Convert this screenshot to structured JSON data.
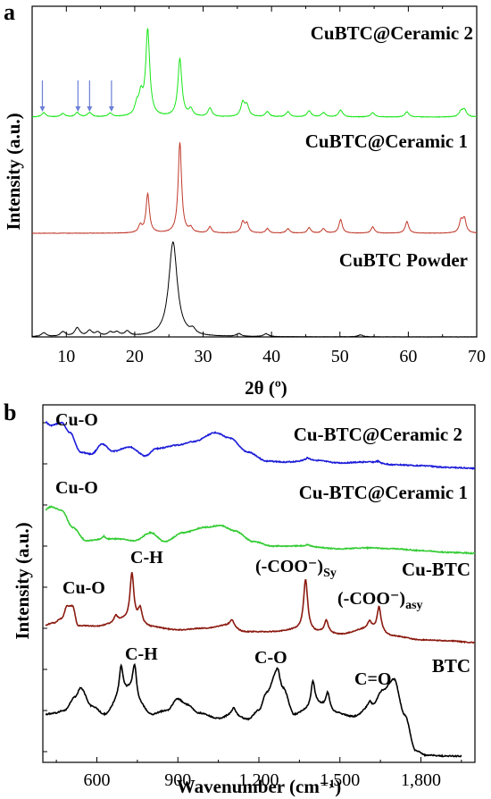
{
  "chart_data": [
    {
      "panel": "a",
      "type": "line",
      "xlabel": "2θ (º)",
      "ylabel": "Intensity (a.u.)",
      "xlim": [
        5,
        70
      ],
      "xticks": [
        10,
        20,
        30,
        40,
        50,
        60,
        70
      ],
      "series": [
        {
          "name": "CuBTC@Ceramic 2",
          "color": "#19e619",
          "peaks": [
            [
              6.7,
              0.05
            ],
            [
              9.5,
              0.04
            ],
            [
              11.6,
              0.05
            ],
            [
              13.4,
              0.05
            ],
            [
              16.4,
              0.04
            ],
            [
              20.3,
              0.12
            ],
            [
              20.9,
              0.22
            ],
            [
              21.9,
              1.0
            ],
            [
              26.6,
              0.67
            ],
            [
              28.2,
              0.08
            ],
            [
              31.0,
              0.1
            ],
            [
              35.8,
              0.16
            ],
            [
              36.4,
              0.12
            ],
            [
              39.4,
              0.06
            ],
            [
              42.4,
              0.06
            ],
            [
              45.5,
              0.07
            ],
            [
              47.6,
              0.05
            ],
            [
              50.1,
              0.08
            ],
            [
              54.8,
              0.05
            ],
            [
              59.8,
              0.06
            ],
            [
              67.7,
              0.06
            ],
            [
              68.2,
              0.08
            ]
          ]
        },
        {
          "name": "CuBTC@Ceramic 1",
          "color": "#c0392b",
          "peaks": [
            [
              20.8,
              0.08
            ],
            [
              21.9,
              0.43
            ],
            [
              26.6,
              1.0
            ],
            [
              28.2,
              0.05
            ],
            [
              31.0,
              0.07
            ],
            [
              35.8,
              0.12
            ],
            [
              36.4,
              0.1
            ],
            [
              39.4,
              0.05
            ],
            [
              42.4,
              0.05
            ],
            [
              45.5,
              0.06
            ],
            [
              47.6,
              0.05
            ],
            [
              50.1,
              0.15
            ],
            [
              54.8,
              0.07
            ],
            [
              59.8,
              0.13
            ],
            [
              67.7,
              0.13
            ],
            [
              68.2,
              0.15
            ]
          ]
        },
        {
          "name": "CuBTC Powder",
          "color": "#000000",
          "peaks": [
            [
              6.7,
              0.04
            ],
            [
              9.5,
              0.05
            ],
            [
              11.6,
              0.09
            ],
            [
              13.4,
              0.06
            ],
            [
              14.6,
              0.04
            ],
            [
              16.4,
              0.04
            ],
            [
              17.4,
              0.04
            ],
            [
              18.9,
              0.05
            ],
            [
              25.6,
              1.0
            ],
            [
              28.5,
              0.05
            ],
            [
              35.2,
              0.03
            ],
            [
              39.2,
              0.03
            ],
            [
              53.0,
              0.02
            ]
          ]
        }
      ],
      "arrows_x": [
        6.5,
        11.7,
        13.4,
        16.6
      ]
    },
    {
      "panel": "b",
      "type": "line",
      "xlabel": "Wavenumber (cm⁻¹)",
      "ylabel": "Intensity (a.u.)",
      "xlim": [
        400,
        2000
      ],
      "xticks": [
        600,
        900,
        1200,
        1500,
        1800
      ],
      "xtick_labels": [
        "600",
        "900",
        "1,200",
        "1,500",
        "1,800"
      ],
      "series": [
        {
          "name": "Cu-BTC@Ceramic 2",
          "color": "#1c1cd9"
        },
        {
          "name": "Cu-BTC@Ceramic 1",
          "color": "#33cc33"
        },
        {
          "name": "Cu-BTC",
          "color": "#8b1a10"
        },
        {
          "name": "BTC",
          "color": "#000000"
        }
      ],
      "annotations": [
        {
          "text": "Cu-O",
          "x": 480
        },
        {
          "text": "Cu-O",
          "x": 480
        },
        {
          "text": "Cu-O",
          "x": 510
        },
        {
          "text": "C-H",
          "x": 730
        },
        {
          "text": "C-H",
          "x": 700
        },
        {
          "text": "C-O",
          "x": 1260
        },
        {
          "text": "C=O",
          "x": 1700
        }
      ],
      "annotation_sy": {
        "main": "(-COO⁻)",
        "sub": "Sy"
      },
      "annotation_asy": {
        "main": "(-COO⁻)",
        "sub": "asy"
      }
    }
  ],
  "labels": {
    "panel_a": "a",
    "panel_b": "b"
  }
}
